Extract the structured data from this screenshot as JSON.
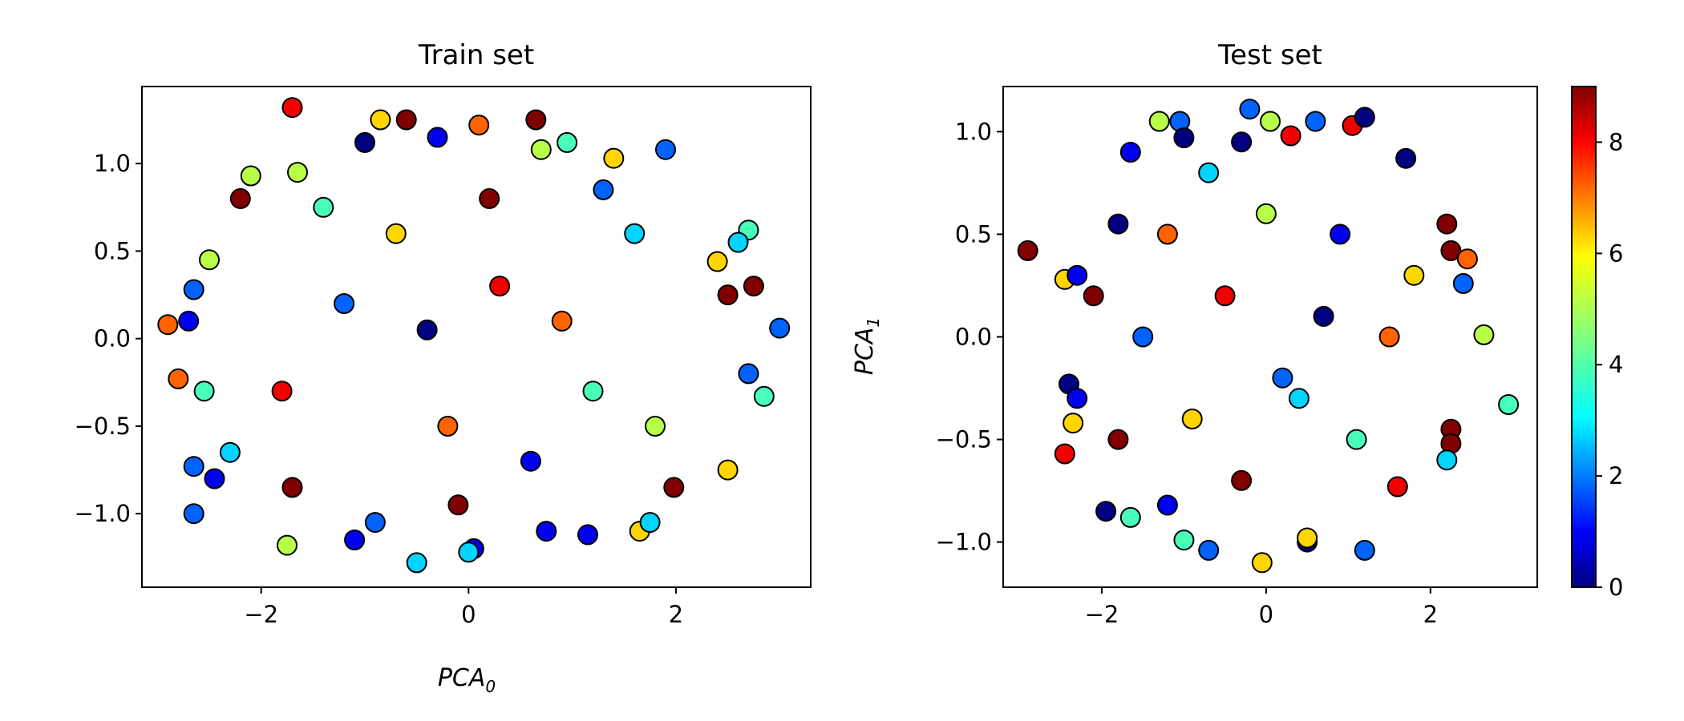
{
  "chart_data": [
    {
      "type": "scatter",
      "title": "Train set",
      "xlabel": "PCA",
      "xlabel_sub": "0",
      "ylabel": "",
      "xlim": [
        -3.15,
        3.3
      ],
      "ylim": [
        -1.42,
        1.44
      ],
      "xticks": [
        -2,
        0,
        2
      ],
      "xtick_labels": [
        "−2",
        "0",
        "2"
      ],
      "yticks": [
        -1.0,
        -0.5,
        0.0,
        0.5,
        1.0
      ],
      "ytick_labels": [
        "−1.0",
        "−0.5",
        "0.0",
        "0.5",
        "1.0"
      ],
      "series": [
        {
          "points": [
            [
              -1.7,
              1.32,
              8
            ],
            [
              -0.6,
              1.25,
              9
            ],
            [
              0.65,
              1.25,
              9
            ],
            [
              0.1,
              1.22,
              7
            ],
            [
              -0.85,
              1.25,
              6
            ],
            [
              -0.3,
              1.15,
              1
            ],
            [
              0.95,
              1.12,
              4
            ],
            [
              1.9,
              1.08,
              2
            ],
            [
              1.4,
              1.03,
              6
            ],
            [
              -2.1,
              0.93,
              5
            ],
            [
              -1.65,
              0.95,
              5
            ],
            [
              2.7,
              0.62,
              4
            ],
            [
              2.4,
              0.44,
              6
            ],
            [
              2.5,
              0.25,
              9
            ],
            [
              2.75,
              0.3,
              9
            ],
            [
              3.0,
              0.06,
              2
            ],
            [
              -2.9,
              0.08,
              7
            ],
            [
              -2.65,
              0.28,
              2
            ],
            [
              -2.5,
              0.45,
              5
            ],
            [
              -2.8,
              -0.23,
              7
            ],
            [
              -2.55,
              -0.3,
              4
            ],
            [
              -2.65,
              -0.73,
              2
            ],
            [
              -2.45,
              -0.8,
              1
            ],
            [
              -2.65,
              -1.0,
              2
            ],
            [
              -2.3,
              -0.65,
              3
            ],
            [
              -1.75,
              -1.18,
              5
            ],
            [
              -0.5,
              -1.28,
              3
            ],
            [
              0.05,
              -1.2,
              1
            ],
            [
              0.75,
              -1.1,
              1
            ],
            [
              1.15,
              -1.12,
              1
            ],
            [
              1.65,
              -1.1,
              6
            ],
            [
              1.75,
              -1.05,
              3
            ],
            [
              2.5,
              -0.75,
              6
            ],
            [
              2.85,
              -0.33,
              4
            ],
            [
              2.7,
              -0.2,
              2
            ],
            [
              1.98,
              -0.85,
              9
            ],
            [
              -1.7,
              -0.85,
              9
            ],
            [
              -2.2,
              0.8,
              9
            ],
            [
              -1.0,
              1.12,
              0
            ],
            [
              0.7,
              1.08,
              5
            ],
            [
              2.6,
              0.55,
              3
            ],
            [
              -2.7,
              0.1,
              1
            ],
            [
              0.0,
              -1.22,
              3
            ],
            [
              -1.1,
              -1.15,
              1
            ],
            [
              -0.9,
              -1.05,
              2
            ],
            [
              -0.2,
              -0.5,
              7
            ],
            [
              0.3,
              0.3,
              8
            ],
            [
              -1.2,
              0.2,
              2
            ],
            [
              1.2,
              -0.3,
              4
            ],
            [
              0.6,
              -0.7,
              1
            ],
            [
              -0.7,
              0.6,
              6
            ],
            [
              0.2,
              0.8,
              9
            ],
            [
              1.6,
              0.6,
              3
            ],
            [
              -1.8,
              -0.3,
              8
            ],
            [
              1.8,
              -0.5,
              5
            ],
            [
              -0.4,
              0.05,
              0
            ],
            [
              0.9,
              0.1,
              7
            ],
            [
              -1.4,
              0.75,
              4
            ],
            [
              1.3,
              0.85,
              2
            ],
            [
              -0.1,
              -0.95,
              9
            ]
          ]
        }
      ]
    },
    {
      "type": "scatter",
      "title": "Test set",
      "xlabel": "",
      "ylabel": "PCA",
      "ylabel_sub": "1",
      "xlim": [
        -3.2,
        3.3
      ],
      "ylim": [
        -1.22,
        1.22
      ],
      "xticks": [
        -2,
        0,
        2
      ],
      "xtick_labels": [
        "−2",
        "0",
        "2"
      ],
      "yticks": [
        -1.0,
        -0.5,
        0.0,
        0.5,
        1.0
      ],
      "ytick_labels": [
        "−1.0",
        "−0.5",
        "0.0",
        "0.5",
        "1.0"
      ],
      "series": [
        {
          "points": [
            [
              -2.9,
              0.42,
              9
            ],
            [
              -2.45,
              0.28,
              6
            ],
            [
              -2.3,
              0.3,
              1
            ],
            [
              -2.1,
              0.2,
              9
            ],
            [
              -2.45,
              -0.57,
              8
            ],
            [
              -2.35,
              -0.42,
              6
            ],
            [
              -2.4,
              -0.23,
              0
            ],
            [
              -2.3,
              -0.3,
              1
            ],
            [
              -1.95,
              -0.85,
              0
            ],
            [
              -1.65,
              -0.88,
              4
            ],
            [
              -1.3,
              1.05,
              5
            ],
            [
              -1.05,
              1.05,
              2
            ],
            [
              -1.65,
              0.9,
              1
            ],
            [
              -1.0,
              0.97,
              0
            ],
            [
              -0.2,
              1.11,
              2
            ],
            [
              0.05,
              1.05,
              5
            ],
            [
              1.05,
              1.03,
              8
            ],
            [
              1.2,
              1.07,
              0
            ],
            [
              0.6,
              1.05,
              2
            ],
            [
              1.7,
              0.87,
              0
            ],
            [
              2.2,
              0.55,
              9
            ],
            [
              2.25,
              0.42,
              9
            ],
            [
              2.45,
              0.38,
              7
            ],
            [
              2.4,
              0.26,
              2
            ],
            [
              2.65,
              0.01,
              5
            ],
            [
              2.95,
              -0.33,
              4
            ],
            [
              2.25,
              -0.45,
              9
            ],
            [
              2.25,
              -0.52,
              9
            ],
            [
              2.2,
              -0.6,
              3
            ],
            [
              1.6,
              -0.73,
              8
            ],
            [
              1.2,
              -1.04,
              2
            ],
            [
              0.5,
              -1.0,
              0
            ],
            [
              0.5,
              -0.98,
              6
            ],
            [
              -0.05,
              -1.1,
              6
            ],
            [
              -0.7,
              -1.04,
              2
            ],
            [
              -1.0,
              -0.99,
              4
            ],
            [
              -1.2,
              -0.82,
              1
            ],
            [
              -0.3,
              0.95,
              0
            ],
            [
              0.3,
              0.98,
              8
            ],
            [
              -1.8,
              0.55,
              0
            ],
            [
              -0.5,
              0.2,
              8
            ],
            [
              0.4,
              -0.3,
              3
            ],
            [
              -0.9,
              -0.4,
              6
            ],
            [
              0.9,
              0.5,
              1
            ],
            [
              1.5,
              0.0,
              7
            ],
            [
              -1.5,
              0.0,
              2
            ],
            [
              0.0,
              0.6,
              5
            ],
            [
              -0.3,
              -0.7,
              9
            ],
            [
              1.1,
              -0.5,
              4
            ],
            [
              -1.2,
              0.5,
              7
            ],
            [
              0.7,
              0.1,
              0
            ],
            [
              -0.7,
              0.8,
              3
            ],
            [
              1.8,
              0.3,
              6
            ],
            [
              -1.8,
              -0.5,
              9
            ],
            [
              0.2,
              -0.2,
              2
            ]
          ]
        }
      ]
    }
  ],
  "colorbar": {
    "colormap": "jet",
    "range": [
      0,
      9
    ],
    "ticks": [
      0,
      2,
      4,
      6,
      8
    ],
    "tick_labels": [
      "0",
      "2",
      "4",
      "6",
      "8"
    ]
  }
}
